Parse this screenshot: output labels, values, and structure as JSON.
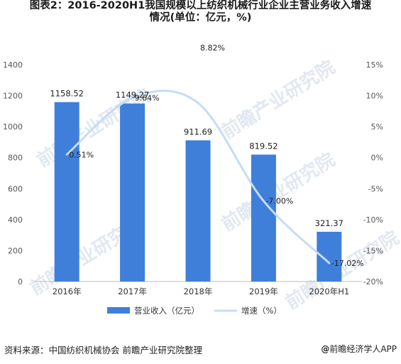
{
  "title_line1": "图表2：2016-2020H1我国规模以上纺织机械行业企业主营业务收入增速",
  "title_line2": "情况(单位：亿元，%)",
  "source": "资料来源：中国纺织机械协会 前瞻产业研究院整理",
  "brand_at": "@",
  "brand": "前瞻经济学人APP",
  "watermark": "前瞻产业研究院",
  "chart_data": {
    "type": "bar",
    "categories": [
      "2016年",
      "2017年",
      "2018年",
      "2019年",
      "2020年H1"
    ],
    "series": [
      {
        "name": "营业收入（亿元）",
        "type": "bar",
        "axis": "left",
        "color": "#3f7fd9",
        "values": [
          1158.52,
          1149.27,
          911.69,
          819.52,
          321.37
        ],
        "labels": [
          "1158.52",
          "1149.27",
          "911.69",
          "819.52",
          "321.37"
        ]
      },
      {
        "name": "增速（%）",
        "type": "line",
        "axis": "right",
        "color": "#c5dcf5",
        "values": [
          0.51,
          9.64,
          8.82,
          -7.0,
          -17.02
        ],
        "labels": [
          "0.51%",
          "9.64%",
          "8.82%",
          "-7.00%",
          "-17.02%"
        ]
      }
    ],
    "y_left": {
      "min": 0,
      "max": 1400,
      "ticks": [
        "0",
        "200",
        "400",
        "600",
        "800",
        "1000",
        "1200",
        "1400"
      ]
    },
    "y_right": {
      "min": -20,
      "max": 15,
      "ticks": [
        "-20%",
        "-15%",
        "-10%",
        "-5%",
        "0%",
        "5%",
        "10%",
        "15%"
      ]
    },
    "grid": false,
    "legend_position": "bottom"
  }
}
